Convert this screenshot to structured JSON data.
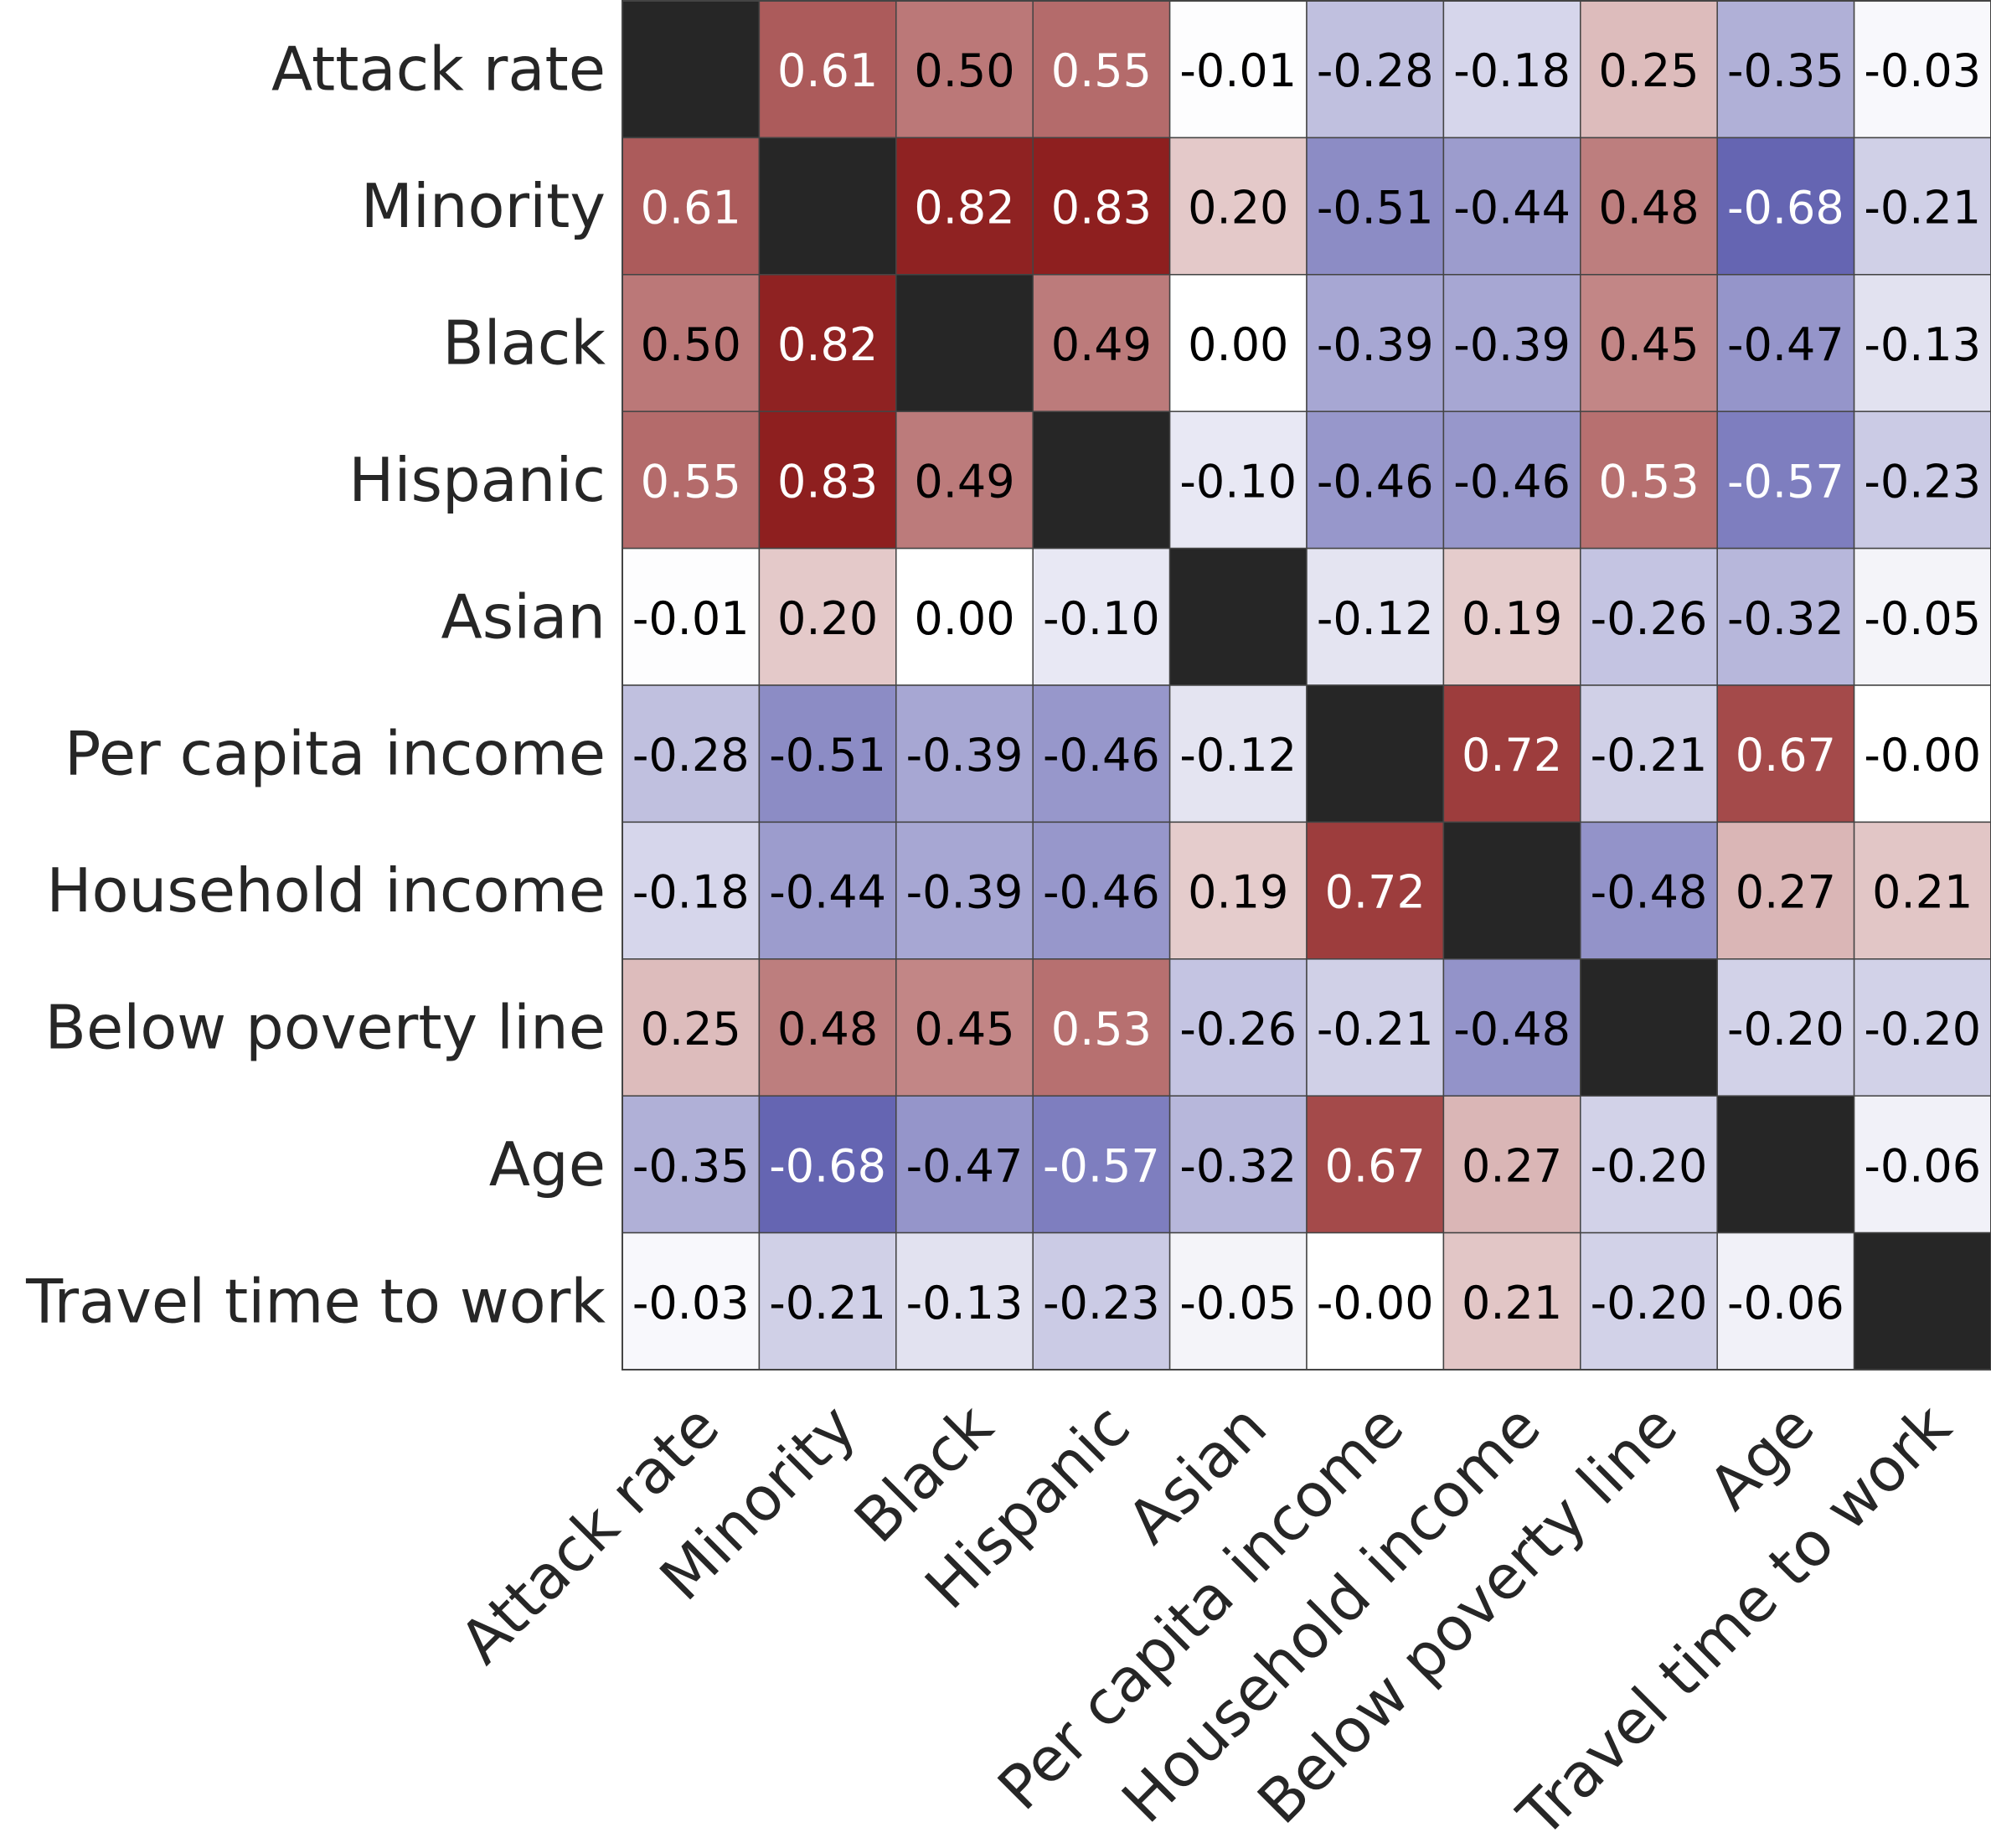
{
  "chart_data": {
    "type": "heatmap",
    "title": "",
    "xlabel": "",
    "ylabel": "",
    "labels": [
      "Attack rate",
      "Minority",
      "Black",
      "Hispanic",
      "Asian",
      "Per capita income",
      "Household income",
      "Below poverty line",
      "Age",
      "Travel time to work"
    ],
    "values": [
      [
        null,
        0.61,
        0.5,
        0.55,
        -0.01,
        -0.28,
        -0.18,
        0.25,
        -0.35,
        -0.03
      ],
      [
        0.61,
        null,
        0.82,
        0.83,
        0.2,
        -0.51,
        -0.44,
        0.48,
        -0.68,
        -0.21
      ],
      [
        0.5,
        0.82,
        null,
        0.49,
        0.0,
        -0.39,
        -0.39,
        0.45,
        -0.47,
        -0.13
      ],
      [
        0.55,
        0.83,
        0.49,
        null,
        -0.1,
        -0.46,
        -0.46,
        0.53,
        -0.57,
        -0.23
      ],
      [
        -0.01,
        0.2,
        0.0,
        -0.1,
        null,
        -0.12,
        0.19,
        -0.26,
        -0.32,
        -0.05
      ],
      [
        -0.28,
        -0.51,
        -0.39,
        -0.46,
        -0.12,
        null,
        0.72,
        -0.21,
        0.67,
        -0.0
      ],
      [
        -0.18,
        -0.44,
        -0.39,
        -0.46,
        0.19,
        0.72,
        null,
        -0.48,
        0.27,
        0.21
      ],
      [
        0.25,
        0.48,
        0.45,
        0.53,
        -0.26,
        -0.21,
        -0.48,
        null,
        -0.2,
        -0.2
      ],
      [
        -0.35,
        -0.68,
        -0.47,
        -0.57,
        -0.32,
        0.67,
        0.27,
        -0.2,
        null,
        -0.06
      ],
      [
        -0.03,
        -0.21,
        -0.13,
        -0.23,
        -0.05,
        -0.0,
        0.21,
        -0.2,
        -0.06,
        null
      ]
    ],
    "display_text": [
      [
        "",
        "0.61",
        "0.50",
        "0.55",
        "-0.01",
        "-0.28",
        "-0.18",
        "0.25",
        "-0.35",
        "-0.03"
      ],
      [
        "0.61",
        "",
        "0.82",
        "0.83",
        "0.20",
        "-0.51",
        "-0.44",
        "0.48",
        "-0.68",
        "-0.21"
      ],
      [
        "0.50",
        "0.82",
        "",
        "0.49",
        "0.00",
        "-0.39",
        "-0.39",
        "0.45",
        "-0.47",
        "-0.13"
      ],
      [
        "0.55",
        "0.83",
        "0.49",
        "",
        "-0.10",
        "-0.46",
        "-0.46",
        "0.53",
        "-0.57",
        "-0.23"
      ],
      [
        "-0.01",
        "0.20",
        "0.00",
        "-0.10",
        "",
        "-0.12",
        "0.19",
        "-0.26",
        "-0.32",
        "-0.05"
      ],
      [
        "-0.28",
        "-0.51",
        "-0.39",
        "-0.46",
        "-0.12",
        "",
        "0.72",
        "-0.21",
        "0.67",
        "-0.00"
      ],
      [
        "-0.18",
        "-0.44",
        "-0.39",
        "-0.46",
        "0.19",
        "0.72",
        "",
        "-0.48",
        "0.27",
        "0.21"
      ],
      [
        "0.25",
        "0.48",
        "0.45",
        "0.53",
        "-0.26",
        "-0.21",
        "-0.48",
        "",
        "-0.20",
        "-0.20"
      ],
      [
        "-0.35",
        "-0.68",
        "-0.47",
        "-0.57",
        "-0.32",
        "0.67",
        "0.27",
        "-0.20",
        "",
        "-0.06"
      ],
      [
        "-0.03",
        "-0.21",
        "-0.13",
        "-0.23",
        "-0.05",
        "-0.00",
        "0.21",
        "-0.20",
        "-0.06",
        ""
      ]
    ],
    "value_range": [
      -1,
      1
    ],
    "colormap": {
      "positive_max": "#8B1A1A",
      "negative_max": "#3F3F9F",
      "neutral": "#FFFFFF",
      "diagonal": "#262626",
      "grid_line": "#444444"
    },
    "annotation_colors": {
      "light": "#FFFFFF",
      "dark": "#000000"
    },
    "legend": "none",
    "grid": true
  }
}
